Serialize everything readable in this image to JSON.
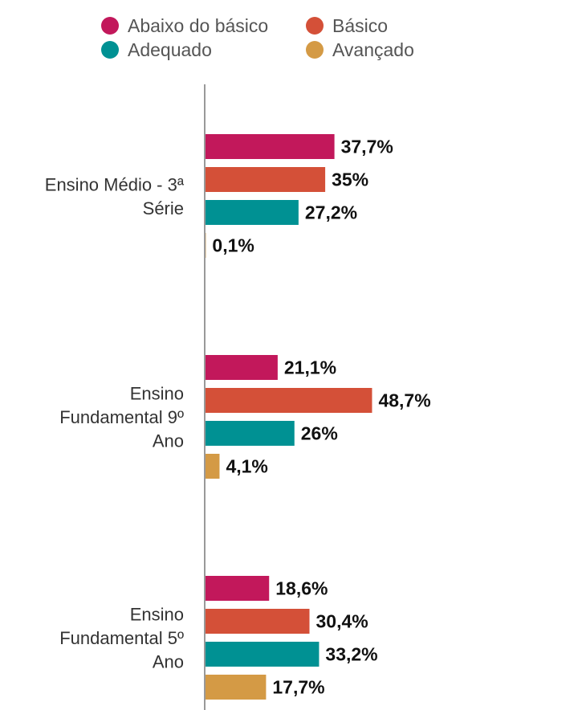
{
  "chart_data": {
    "type": "bar",
    "orientation": "horizontal",
    "legend_position": "top",
    "grid": false,
    "xlim": [
      0,
      60
    ],
    "categories": [
      "Ensino Médio - 3ª Série",
      "Ensino Fundamental 9º Ano",
      "Ensino Fundamental 5º Ano"
    ],
    "category_lines": [
      [
        "Ensino Médio - 3ª",
        "Série"
      ],
      [
        "Ensino",
        "Fundamental 9º",
        "Ano"
      ],
      [
        "Ensino",
        "Fundamental 5º",
        "Ano"
      ]
    ],
    "series": [
      {
        "name": "Abaixo do básico",
        "color": "#C2185B",
        "values": [
          37.7,
          21.1,
          18.6
        ],
        "labels": [
          "37,7%",
          "21,1%",
          "18,6%"
        ]
      },
      {
        "name": "Básico",
        "color": "#D45038",
        "values": [
          35,
          48.7,
          30.4
        ],
        "labels": [
          "35%",
          "48,7%",
          "30,4%"
        ]
      },
      {
        "name": "Adequado",
        "color": "#009193",
        "values": [
          27.2,
          26,
          33.2
        ],
        "labels": [
          "27,2%",
          "26%",
          "33,2%"
        ]
      },
      {
        "name": "Avançado",
        "color": "#D49A45",
        "values": [
          0.1,
          4.1,
          17.7
        ],
        "labels": [
          "0,1%",
          "4,1%",
          "17,7%"
        ]
      }
    ],
    "title": "",
    "xlabel": "",
    "ylabel": ""
  }
}
